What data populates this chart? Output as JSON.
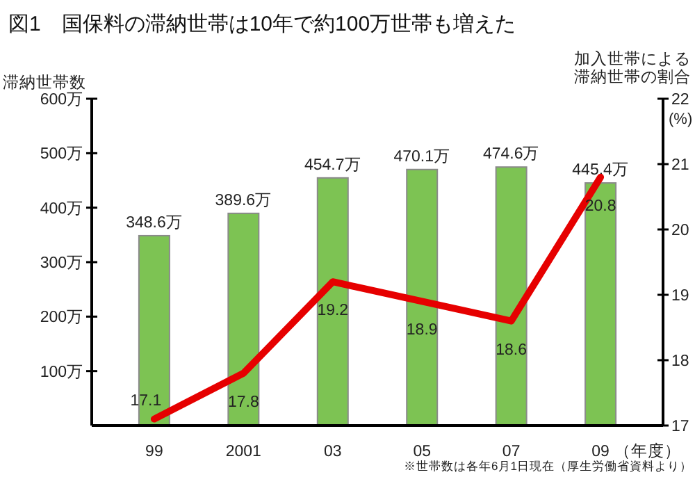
{
  "chart_data": {
    "type": "bar",
    "title": "図1　国保料の滞納世帯は10年で約100万世帯も増えた",
    "ylabel": "滞納世帯数",
    "y2label": "加入世帯による滞納世帯の割合",
    "xlabel": "（年度）",
    "annotations": [
      "(%)",
      "※世帯数は各年6月1日現在（厚生労働省資料より）"
    ],
    "categories": [
      "99",
      "2001",
      "03",
      "05",
      "07",
      "09"
    ],
    "series": [
      {
        "color": "#7dc353",
        "values": [
          348.6,
          389.6,
          454.7,
          470.1,
          474.6,
          445.4
        ],
        "value_labels": [
          "348.6万",
          "389.6万",
          "454.7万",
          "470.1万",
          "474.6万",
          "445.4万"
        ]
      },
      {
        "type": "line",
        "axis": "y2",
        "color": "#e60000",
        "values": [
          17.1,
          17.8,
          19.2,
          18.9,
          18.6,
          20.8
        ],
        "value_labels": [
          "17.1",
          "17.8",
          "19.2",
          "18.9",
          "18.6",
          "20.8"
        ]
      }
    ],
    "ylim": [
      0,
      600
    ],
    "yticks": [
      {
        "value": 100,
        "label": "100万"
      },
      {
        "value": 200,
        "label": "200万"
      },
      {
        "value": 300,
        "label": "300万"
      },
      {
        "value": 400,
        "label": "400万"
      },
      {
        "value": 500,
        "label": "500万"
      },
      {
        "value": 600,
        "label": "600万"
      }
    ],
    "y2lim": [
      17,
      22
    ],
    "y2ticks": [
      17,
      18,
      19,
      20,
      21,
      22
    ],
    "grid": false
  }
}
